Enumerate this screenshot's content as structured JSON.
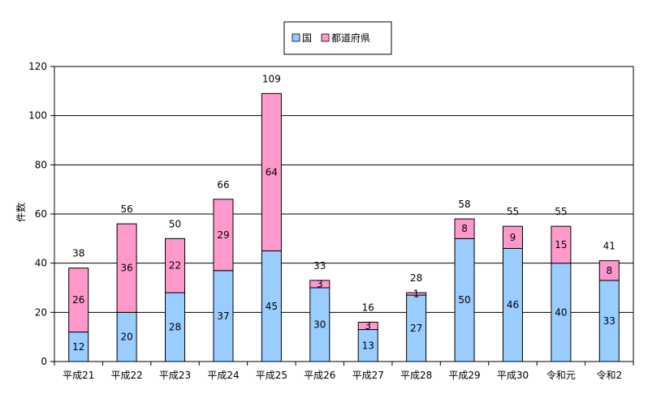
{
  "chart_data": {
    "type": "bar",
    "stacked": true,
    "categories": [
      "平成21",
      "平成22",
      "平成23",
      "平成24",
      "平成25",
      "平成26",
      "平成27",
      "平成28",
      "平成29",
      "平成30",
      "令和元",
      "令和2"
    ],
    "series": [
      {
        "name": "国",
        "color": "#99ccff",
        "values": [
          12,
          20,
          28,
          37,
          45,
          30,
          13,
          27,
          50,
          46,
          40,
          33
        ]
      },
      {
        "name": "都道府県",
        "color": "#ff99cc",
        "values": [
          26,
          36,
          22,
          29,
          64,
          3,
          3,
          1,
          8,
          9,
          15,
          8
        ]
      }
    ],
    "totals": [
      38,
      56,
      50,
      66,
      109,
      33,
      16,
      28,
      58,
      55,
      55,
      41
    ],
    "ylabel": "件数",
    "ylim": [
      0,
      120
    ],
    "yticks": [
      0,
      20,
      40,
      60,
      80,
      100,
      120
    ],
    "grid": true,
    "legend_position": "top-center"
  }
}
